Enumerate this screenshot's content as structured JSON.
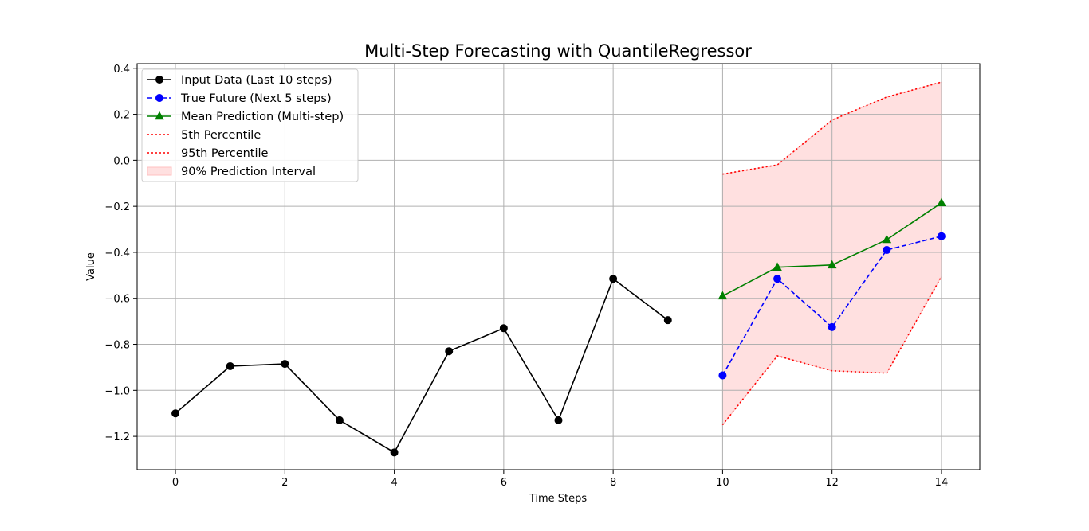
{
  "chart_data": {
    "type": "line",
    "title": "Multi-Step Forecasting with QuantileRegressor",
    "xlabel": "Time Steps",
    "ylabel": "Value",
    "xlim": [
      -0.7,
      14.7
    ],
    "ylim": [
      -1.345,
      0.42
    ],
    "x_ticks": [
      0,
      2,
      4,
      6,
      8,
      10,
      12,
      14
    ],
    "y_ticks": [
      0.4,
      0.2,
      0.0,
      -0.2,
      -0.4,
      -0.6,
      -0.8,
      -1.0,
      -1.2
    ],
    "x_tick_labels": [
      "0",
      "2",
      "4",
      "6",
      "8",
      "10",
      "12",
      "14"
    ],
    "y_tick_labels": [
      "0.4",
      "0.2",
      "0.0",
      "−0.2",
      "−0.4",
      "−0.6",
      "−0.8",
      "−1.0",
      "−1.2"
    ],
    "grid": true,
    "legend_position": "upper-left",
    "series": [
      {
        "name": "Input Data (Last 10 steps)",
        "kind": "line",
        "color": "#000000",
        "linestyle": "solid",
        "marker": "circle",
        "x": [
          0,
          1,
          2,
          3,
          4,
          5,
          6,
          7,
          8,
          9
        ],
        "y": [
          -1.1,
          -0.895,
          -0.885,
          -1.13,
          -1.27,
          -0.83,
          -0.73,
          -1.13,
          -0.515,
          -0.695
        ]
      },
      {
        "name": "True Future (Next 5 steps)",
        "kind": "line",
        "color": "#0000ff",
        "linestyle": "dashed",
        "marker": "circle",
        "x": [
          10,
          11,
          12,
          13,
          14
        ],
        "y": [
          -0.935,
          -0.515,
          -0.725,
          -0.39,
          -0.33
        ]
      },
      {
        "name": "Mean Prediction (Multi-step)",
        "kind": "line",
        "color": "#008000",
        "linestyle": "solid",
        "marker": "triangle",
        "x": [
          10,
          11,
          12,
          13,
          14
        ],
        "y": [
          -0.59,
          -0.465,
          -0.455,
          -0.345,
          -0.185
        ]
      },
      {
        "name": "5th Percentile",
        "kind": "line",
        "color": "#ff0000",
        "linestyle": "dotted",
        "marker": "none",
        "x": [
          10,
          11,
          12,
          13,
          14
        ],
        "y": [
          -1.15,
          -0.85,
          -0.915,
          -0.925,
          -0.505
        ]
      },
      {
        "name": "95th Percentile",
        "kind": "line",
        "color": "#ff0000",
        "linestyle": "dotted",
        "marker": "none",
        "x": [
          10,
          11,
          12,
          13,
          14
        ],
        "y": [
          -0.06,
          -0.02,
          0.175,
          0.275,
          0.34
        ]
      },
      {
        "name": "90% Prediction Interval",
        "kind": "band",
        "color": "#ffe0e0",
        "edge_color": "#ffc0c0",
        "x": [
          10,
          11,
          12,
          13,
          14
        ],
        "lower": [
          -1.15,
          -0.85,
          -0.915,
          -0.925,
          -0.505
        ],
        "upper": [
          -0.06,
          -0.02,
          0.175,
          0.275,
          0.34
        ]
      }
    ]
  }
}
